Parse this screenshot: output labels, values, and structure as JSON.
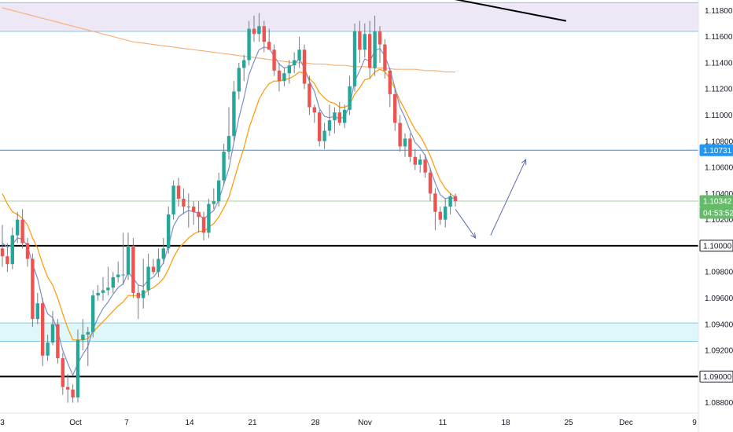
{
  "chart_data": {
    "type": "candlestick",
    "title": "",
    "price_axis": {
      "ylim": [
        1.0872,
        1.1188
      ],
      "tick_labels": [
        "1.11800",
        "1.11600",
        "1.11400",
        "1.11200",
        "1.11000",
        "1.10800",
        "1.10600",
        "1.10400",
        "1.10200",
        "1.10000",
        "1.09800",
        "1.09600",
        "1.09400",
        "1.09200",
        "1.09000",
        "1.08800"
      ],
      "tick_values": [
        1.118,
        1.116,
        1.114,
        1.112,
        1.11,
        1.108,
        1.106,
        1.104,
        1.102,
        1.1,
        1.098,
        1.096,
        1.094,
        1.092,
        1.09,
        1.088
      ]
    },
    "time_axis": {
      "tick_labels": [
        "3",
        "Oct",
        "7",
        "14",
        "21",
        "28",
        "Nov",
        "11",
        "18",
        "25",
        "Dec",
        "9"
      ]
    },
    "price_badges": [
      {
        "label": "1.10731",
        "value": 1.10731,
        "color": "#2196f3"
      },
      {
        "label": "1.10342",
        "value": 1.10342,
        "color": "#66bb6a"
      },
      {
        "label": "04:53:52",
        "value": 1.10262,
        "color": "#66bb6a"
      },
      {
        "label": "1.10000",
        "value": 1.1,
        "color": "#131722"
      },
      {
        "label": "1.09000",
        "value": 1.09,
        "color": "#131722"
      }
    ],
    "horizontal_levels": [
      {
        "value": 1.1,
        "color": "#000000",
        "width": 2
      },
      {
        "value": 1.09,
        "color": "#000000",
        "width": 2
      },
      {
        "value": 1.10731,
        "color": "#2196f3",
        "width": 1
      },
      {
        "value": 1.10342,
        "color": "#a5d6a7",
        "width": 1
      }
    ],
    "zones": [
      {
        "from": 1.1164,
        "to": 1.1186,
        "fill": "#ede7f6",
        "border": "#7ec8e3"
      },
      {
        "from": 1.0927,
        "to": 1.0941,
        "fill": "#e0f7fa",
        "border": "#7ec8e3"
      }
    ],
    "candles": [
      [
        1.0998,
        1.1016,
        1.0984,
        1.0992
      ],
      [
        1.0992,
        1.1002,
        1.098,
        1.0986
      ],
      [
        1.0986,
        1.1014,
        1.0982,
        1.1008
      ],
      [
        1.1008,
        1.1026,
        1.1002,
        1.102
      ],
      [
        1.102,
        1.1028,
        1.0998,
        1.1002
      ],
      [
        1.1002,
        1.1006,
        1.0984,
        1.099
      ],
      [
        1.099,
        1.0994,
        1.0938,
        1.0944
      ],
      [
        1.0944,
        1.0964,
        1.094,
        1.0956
      ],
      [
        1.0956,
        1.096,
        1.0908,
        1.0916
      ],
      [
        1.0916,
        1.0932,
        1.0912,
        1.0926
      ],
      [
        1.0926,
        1.095,
        1.0924,
        1.094
      ],
      [
        1.094,
        1.0944,
        1.091,
        1.0914
      ],
      [
        1.0914,
        1.0918,
        1.0886,
        1.0892
      ],
      [
        1.0892,
        1.0902,
        1.088,
        1.089
      ],
      [
        1.089,
        1.0894,
        1.088,
        1.0884
      ],
      [
        1.0884,
        1.0936,
        1.088,
        1.0928
      ],
      [
        1.0928,
        1.0944,
        1.092,
        1.0932
      ],
      [
        1.0932,
        1.0938,
        1.0908,
        1.0934
      ],
      [
        1.0934,
        1.0966,
        1.093,
        1.0962
      ],
      [
        1.0962,
        1.097,
        1.0958,
        1.0964
      ],
      [
        1.0964,
        1.0976,
        1.0958,
        1.0966
      ],
      [
        1.0966,
        1.0984,
        1.0962,
        1.0968
      ],
      [
        1.0968,
        1.098,
        1.0964,
        1.0976
      ],
      [
        1.0976,
        1.0988,
        1.0972,
        1.0978
      ],
      [
        1.0978,
        1.101,
        1.097,
        1.0978
      ],
      [
        1.0978,
        1.101,
        1.0974,
        1.1
      ],
      [
        1.1,
        1.1006,
        1.096,
        1.0964
      ],
      [
        1.0964,
        1.097,
        1.0944,
        1.096
      ],
      [
        1.096,
        1.099,
        1.0952,
        1.0966
      ],
      [
        1.0966,
        1.0994,
        1.0962,
        1.0984
      ],
      [
        1.0984,
        1.099,
        1.0978,
        1.098
      ],
      [
        1.098,
        1.0998,
        1.0976,
        1.099
      ],
      [
        1.099,
        1.1006,
        1.0986,
        1.0998
      ],
      [
        1.0998,
        1.103,
        1.0994,
        1.1024
      ],
      [
        1.1024,
        1.105,
        1.102,
        1.1046
      ],
      [
        1.1046,
        1.1052,
        1.103,
        1.1036
      ],
      [
        1.1036,
        1.1044,
        1.1024,
        1.103
      ],
      [
        1.103,
        1.104,
        1.1014,
        1.103
      ],
      [
        1.103,
        1.1034,
        1.1016,
        1.1026
      ],
      [
        1.1026,
        1.1034,
        1.101,
        1.1022
      ],
      [
        1.1022,
        1.1026,
        1.1004,
        1.101
      ],
      [
        1.101,
        1.1036,
        1.1006,
        1.1032
      ],
      [
        1.1032,
        1.1044,
        1.1028,
        1.1034
      ],
      [
        1.1034,
        1.1056,
        1.103,
        1.105
      ],
      [
        1.105,
        1.1078,
        1.1046,
        1.1072
      ],
      [
        1.1072,
        1.1106,
        1.1066,
        1.1084
      ],
      [
        1.1084,
        1.1126,
        1.108,
        1.1118
      ],
      [
        1.1118,
        1.114,
        1.1112,
        1.1136
      ],
      [
        1.1136,
        1.1146,
        1.1126,
        1.1142
      ],
      [
        1.1142,
        1.1172,
        1.1138,
        1.1166
      ],
      [
        1.1166,
        1.1176,
        1.1156,
        1.1162
      ],
      [
        1.1162,
        1.1178,
        1.1156,
        1.1168
      ],
      [
        1.1168,
        1.1172,
        1.1148,
        1.1156
      ],
      [
        1.1156,
        1.1166,
        1.115,
        1.115
      ],
      [
        1.115,
        1.1154,
        1.113,
        1.1134
      ],
      [
        1.1134,
        1.114,
        1.1118,
        1.1126
      ],
      [
        1.1126,
        1.1136,
        1.1122,
        1.1132
      ],
      [
        1.1132,
        1.1142,
        1.1124,
        1.1138
      ],
      [
        1.1138,
        1.1148,
        1.1132,
        1.1142
      ],
      [
        1.1142,
        1.116,
        1.1136,
        1.115
      ],
      [
        1.115,
        1.1154,
        1.112,
        1.1124
      ],
      [
        1.1124,
        1.113,
        1.11,
        1.1106
      ],
      [
        1.1106,
        1.1108,
        1.1094,
        1.1102
      ],
      [
        1.1102,
        1.1104,
        1.1076,
        1.108
      ],
      [
        1.108,
        1.1094,
        1.1074,
        1.1088
      ],
      [
        1.1088,
        1.1108,
        1.1084,
        1.1096
      ],
      [
        1.1096,
        1.1106,
        1.1086,
        1.1102
      ],
      [
        1.1102,
        1.111,
        1.1092,
        1.1094
      ],
      [
        1.1094,
        1.1108,
        1.109,
        1.1104
      ],
      [
        1.1104,
        1.113,
        1.11,
        1.1122
      ],
      [
        1.1122,
        1.117,
        1.1118,
        1.1164
      ],
      [
        1.1164,
        1.1172,
        1.114,
        1.115
      ],
      [
        1.115,
        1.117,
        1.1144,
        1.1162
      ],
      [
        1.1162,
        1.1172,
        1.1128,
        1.1136
      ],
      [
        1.1136,
        1.1176,
        1.113,
        1.1164
      ],
      [
        1.1164,
        1.1168,
        1.114,
        1.1154
      ],
      [
        1.1154,
        1.1158,
        1.1128,
        1.1134
      ],
      [
        1.1134,
        1.1136,
        1.1106,
        1.1116
      ],
      [
        1.1116,
        1.112,
        1.1088,
        1.1094
      ],
      [
        1.1094,
        1.11,
        1.1072,
        1.1076
      ],
      [
        1.1076,
        1.1086,
        1.1068,
        1.1082
      ],
      [
        1.1082,
        1.1086,
        1.1064,
        1.1068
      ],
      [
        1.1068,
        1.1074,
        1.1058,
        1.1062
      ],
      [
        1.1062,
        1.107,
        1.1056,
        1.1066
      ],
      [
        1.1066,
        1.107,
        1.1052,
        1.1056
      ],
      [
        1.1056,
        1.106,
        1.1034,
        1.104
      ],
      [
        1.104,
        1.1044,
        1.1012,
        1.1026
      ],
      [
        1.1026,
        1.103,
        1.1016,
        1.102
      ],
      [
        1.102,
        1.1036,
        1.1014,
        1.103
      ],
      [
        1.103,
        1.104,
        1.1024,
        1.1038
      ],
      [
        1.1038,
        1.104,
        1.103,
        1.1034
      ]
    ],
    "ema_fast": [
      1.1002,
      1.0999,
      1.1001,
      1.1006,
      1.1005,
      1.1,
      1.0986,
      1.0975,
      1.0958,
      1.0948,
      1.0945,
      1.0935,
      1.092,
      1.091,
      1.0901,
      1.091,
      1.0917,
      1.0923,
      1.0936,
      1.0945,
      1.0952,
      1.0957,
      1.0963,
      1.0968,
      1.0971,
      1.098,
      1.0975,
      1.097,
      1.0969,
      1.0974,
      1.0976,
      1.0981,
      1.0987,
      1.1,
      1.1015,
      1.1022,
      1.1025,
      1.1027,
      1.1026,
      1.1025,
      1.102,
      1.1024,
      1.1027,
      1.1035,
      1.1047,
      1.1059,
      1.1079,
      1.1098,
      1.1113,
      1.1131,
      1.1141,
      1.115,
      1.1152,
      1.1151,
      1.1145,
      1.1139,
      1.1136,
      1.1137,
      1.1139,
      1.1143,
      1.1136,
      1.1126,
      1.1118,
      1.1105,
      1.1099,
      1.1098,
      1.1099,
      1.1097,
      1.1099,
      1.1107,
      1.1126,
      1.1134,
      1.1143,
      1.1141,
      1.1149,
      1.1151,
      1.1145,
      1.1135,
      1.1121,
      1.1106,
      1.1098,
      1.1088,
      1.1079,
      1.1075,
      1.1069,
      1.1059,
      1.1048,
      1.1039,
      1.1036,
      1.1037,
      1.1036
    ],
    "ema_slow": [
      1.104,
      1.1032,
      1.1026,
      1.1024,
      1.1021,
      1.1016,
      1.1006,
      1.0998,
      1.0986,
      1.0976,
      1.097,
      1.096,
      1.0948,
      1.0937,
      1.0928,
      1.0928,
      1.0928,
      1.0929,
      1.0934,
      1.0938,
      1.0942,
      1.0946,
      1.095,
      1.0954,
      1.0957,
      1.0962,
      1.0962,
      1.0962,
      1.0963,
      1.0966,
      1.0968,
      1.0971,
      1.0975,
      1.0982,
      1.0991,
      1.0998,
      1.1002,
      1.1006,
      1.1009,
      1.1011,
      1.1011,
      1.1014,
      1.1017,
      1.1022,
      1.1029,
      1.1037,
      1.105,
      1.1063,
      1.1075,
      1.109,
      1.1101,
      1.1112,
      1.1119,
      1.1124,
      1.1126,
      1.1126,
      1.1127,
      1.1128,
      1.113,
      1.1133,
      1.1132,
      1.1128,
      1.1124,
      1.1117,
      1.1113,
      1.111,
      1.1109,
      1.1106,
      1.1106,
      1.1108,
      1.1116,
      1.1121,
      1.1127,
      1.1128,
      1.1133,
      1.1135,
      1.1133,
      1.1128,
      1.112,
      1.1111,
      1.1104,
      1.1096,
      1.1089,
      1.1084,
      1.1077,
      1.1069,
      1.1059,
      1.105,
      1.1044,
      1.104,
      1.1037
    ],
    "ma_long": [
      1.1182,
      1.118,
      1.1178,
      1.1176,
      1.1174,
      1.1172,
      1.117,
      1.1168,
      1.1166,
      1.1164,
      1.1162,
      1.116,
      1.1158,
      1.1156,
      1.1155,
      1.1154,
      1.1153,
      1.1152,
      1.1151,
      1.115,
      1.1149,
      1.1148,
      1.1147,
      1.1146,
      1.1145,
      1.1144,
      1.1143,
      1.1142,
      1.1141,
      1.114,
      1.114,
      1.1139,
      1.1139,
      1.1138,
      1.1138,
      1.1137,
      1.1137,
      1.1136,
      1.1136,
      1.1135,
      1.1135,
      1.1135,
      1.1134,
      1.1134,
      1.1133,
      1.1133
    ],
    "trend_line": {
      "from": [
        88,
        1.119
      ],
      "to": [
        112,
        1.1172
      ]
    },
    "projection_arrows": [
      {
        "from": [
          90,
          1.1028
        ],
        "to": [
          94,
          1.1006
        ]
      },
      {
        "from": [
          97,
          1.1008
        ],
        "to": [
          104,
          1.1066
        ]
      }
    ]
  }
}
